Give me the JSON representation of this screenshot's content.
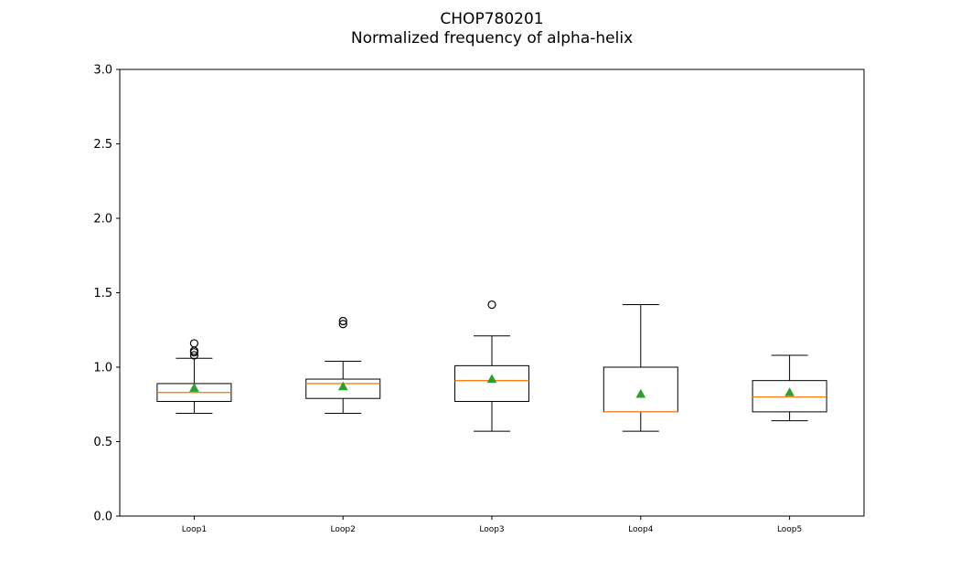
{
  "chart_data": {
    "type": "box",
    "title": "CHOP780201",
    "subtitle": "Normalized frequency of alpha-helix",
    "xlabel": "",
    "ylabel": "",
    "ylim": [
      0.0,
      3.0
    ],
    "yticks": [
      "0.0",
      "0.5",
      "1.0",
      "1.5",
      "2.0",
      "2.5",
      "3.0"
    ],
    "grid": false,
    "colors": {
      "box": "#000000",
      "median": "#ff7f0e",
      "mean": "#2ca02c",
      "flier": "#000000"
    },
    "categories": [
      "Loop1",
      "Loop2",
      "Loop3",
      "Loop4",
      "Loop5"
    ],
    "boxes": [
      {
        "label": "Loop1",
        "whisker_low": 0.69,
        "q1": 0.77,
        "median": 0.83,
        "q3": 0.89,
        "whisker_high": 1.06,
        "mean": 0.86,
        "fliers": [
          1.08,
          1.1,
          1.11,
          1.16
        ]
      },
      {
        "label": "Loop2",
        "whisker_low": 0.69,
        "q1": 0.79,
        "median": 0.89,
        "q3": 0.92,
        "whisker_high": 1.04,
        "mean": 0.87,
        "fliers": [
          1.29,
          1.31
        ]
      },
      {
        "label": "Loop3",
        "whisker_low": 0.57,
        "q1": 0.77,
        "median": 0.91,
        "q3": 1.01,
        "whisker_high": 1.21,
        "mean": 0.92,
        "fliers": [
          1.42
        ]
      },
      {
        "label": "Loop4",
        "whisker_low": 0.57,
        "q1": 0.7,
        "median": 0.7,
        "q3": 1.0,
        "whisker_high": 1.42,
        "mean": 0.82,
        "fliers": []
      },
      {
        "label": "Loop5",
        "whisker_low": 0.64,
        "q1": 0.7,
        "median": 0.8,
        "q3": 0.91,
        "whisker_high": 1.08,
        "mean": 0.83,
        "fliers": []
      }
    ]
  }
}
